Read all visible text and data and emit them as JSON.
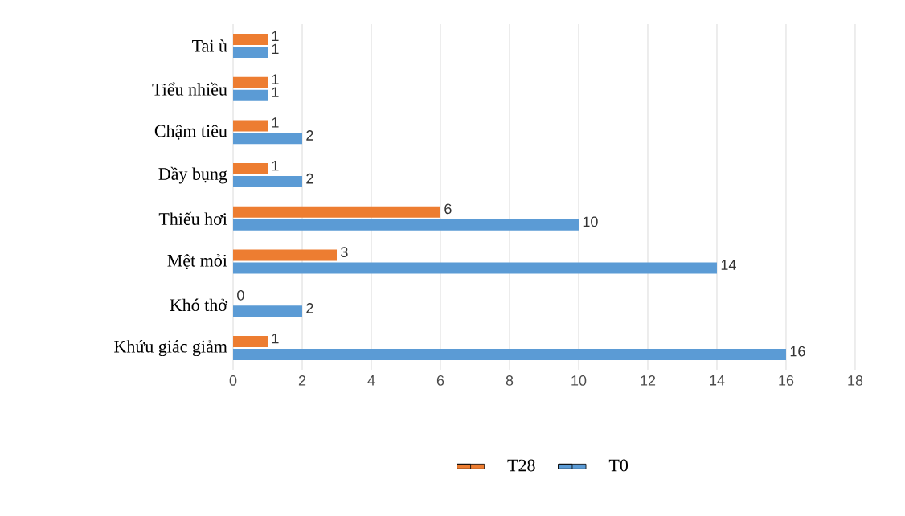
{
  "chart_data": {
    "type": "bar",
    "orientation": "horizontal",
    "categories": [
      "Tai ù",
      "Tiểu nhiều",
      "Chậm tiêu",
      "Đầy bụng",
      "Thiếu hơi",
      "Mệt mỏi",
      "Khó thở",
      "Khứu giác giảm"
    ],
    "series": [
      {
        "name": "T28",
        "color": "#ed7d31",
        "values": [
          1,
          1,
          1,
          1,
          6,
          3,
          0,
          1
        ]
      },
      {
        "name": "T0",
        "color": "#5b9bd5",
        "values": [
          1,
          1,
          2,
          2,
          10,
          14,
          2,
          16
        ]
      }
    ],
    "xlim": [
      0,
      18
    ],
    "xticks": [
      0,
      2,
      4,
      6,
      8,
      10,
      12,
      14,
      16,
      18
    ],
    "grid": "x",
    "legend": "bottom",
    "data_labels": true
  }
}
